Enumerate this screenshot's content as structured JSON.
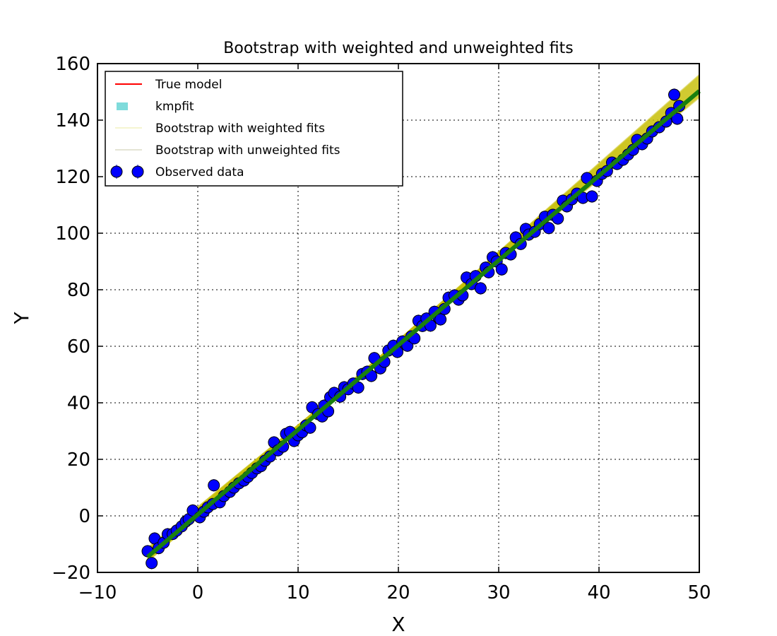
{
  "chart_data": {
    "type": "scatter",
    "title": "Bootstrap with weighted and unweighted fits",
    "xlabel": "X",
    "ylabel": "Y",
    "xlim": [
      -10,
      50
    ],
    "ylim": [
      -20,
      160
    ],
    "xticks": [
      "−10",
      "0",
      "10",
      "20",
      "30",
      "40",
      "50"
    ],
    "yticks": [
      "−20",
      "0",
      "20",
      "40",
      "60",
      "80",
      "100",
      "120",
      "140",
      "160"
    ],
    "grid": true,
    "legend_position": "upper-left",
    "legend": [
      {
        "label": "True model",
        "color": "#ff0000",
        "style": "line"
      },
      {
        "label": "kmpfit",
        "color": "#7fdbdb",
        "style": "patch"
      },
      {
        "label": "Bootstrap with weighted fits",
        "color": "#f5f5d0",
        "style": "line"
      },
      {
        "label": "Bootstrap with unweighted fits",
        "color": "#e4e4d4",
        "style": "line"
      },
      {
        "label": "Observed data",
        "color": "#0000ff",
        "style": "errorbar-marker"
      }
    ],
    "series": [
      {
        "name": "Observed data",
        "kind": "points",
        "color": "#0000ff",
        "points": [
          [
            -5.0,
            -12.5
          ],
          [
            -4.6,
            -16.7
          ],
          [
            -4.3,
            -8.0
          ],
          [
            -3.9,
            -11.4
          ],
          [
            -3.4,
            -9.5
          ],
          [
            -3.0,
            -6.5
          ],
          [
            -2.5,
            -6.4
          ],
          [
            -2.1,
            -5.2
          ],
          [
            -1.6,
            -3.7
          ],
          [
            -1.2,
            -2.0
          ],
          [
            -0.9,
            -1.2
          ],
          [
            -0.5,
            1.9
          ],
          [
            0.2,
            -0.5
          ],
          [
            0.6,
            1.5
          ],
          [
            1.0,
            3.0
          ],
          [
            1.5,
            4.2
          ],
          [
            1.6,
            10.8
          ],
          [
            2.2,
            4.8
          ],
          [
            2.6,
            7.0
          ],
          [
            3.2,
            8.5
          ],
          [
            3.6,
            10.0
          ],
          [
            4.1,
            11.5
          ],
          [
            4.6,
            12.5
          ],
          [
            5.0,
            13.8
          ],
          [
            5.4,
            15.2
          ],
          [
            5.9,
            16.8
          ],
          [
            6.3,
            17.6
          ],
          [
            6.7,
            19.5
          ],
          [
            7.2,
            21.0
          ],
          [
            7.6,
            26.0
          ],
          [
            8.0,
            23.2
          ],
          [
            8.5,
            24.5
          ],
          [
            8.8,
            29.0
          ],
          [
            9.2,
            29.7
          ],
          [
            9.6,
            26.5
          ],
          [
            10.0,
            28.5
          ],
          [
            10.4,
            29.6
          ],
          [
            10.8,
            32.0
          ],
          [
            11.2,
            31.2
          ],
          [
            11.4,
            38.4
          ],
          [
            12.0,
            36.0
          ],
          [
            12.4,
            35.2
          ],
          [
            12.6,
            39.0
          ],
          [
            13.0,
            37.0
          ],
          [
            13.2,
            42.0
          ],
          [
            13.6,
            43.5
          ],
          [
            14.2,
            42.2
          ],
          [
            14.6,
            45.5
          ],
          [
            15.0,
            44.8
          ],
          [
            15.5,
            46.8
          ],
          [
            16.0,
            45.4
          ],
          [
            16.4,
            50.2
          ],
          [
            16.9,
            51.0
          ],
          [
            17.3,
            49.5
          ],
          [
            17.6,
            55.8
          ],
          [
            18.2,
            52.2
          ],
          [
            18.6,
            54.5
          ],
          [
            19.0,
            58.5
          ],
          [
            19.5,
            60.2
          ],
          [
            19.9,
            58.0
          ],
          [
            20.4,
            61.7
          ],
          [
            20.9,
            60.2
          ],
          [
            21.3,
            63.5
          ],
          [
            21.6,
            62.8
          ],
          [
            22.0,
            69.0
          ],
          [
            22.4,
            67.2
          ],
          [
            22.8,
            69.8
          ],
          [
            23.2,
            67.3
          ],
          [
            23.6,
            72.2
          ],
          [
            24.0,
            70.2
          ],
          [
            24.2,
            69.5
          ],
          [
            24.6,
            73.2
          ],
          [
            25.0,
            77.2
          ],
          [
            25.6,
            78.0
          ],
          [
            26.0,
            76.5
          ],
          [
            26.4,
            78.0
          ],
          [
            26.8,
            84.3
          ],
          [
            27.3,
            82.0
          ],
          [
            27.7,
            84.8
          ],
          [
            28.2,
            80.5
          ],
          [
            28.7,
            87.8
          ],
          [
            29.0,
            86.2
          ],
          [
            29.4,
            91.5
          ],
          [
            29.8,
            90.0
          ],
          [
            30.3,
            87.2
          ],
          [
            30.7,
            93.0
          ],
          [
            31.2,
            92.5
          ],
          [
            31.7,
            98.5
          ],
          [
            32.2,
            96.2
          ],
          [
            32.7,
            101.5
          ],
          [
            33.0,
            99.5
          ],
          [
            33.6,
            100.5
          ],
          [
            34.1,
            103.2
          ],
          [
            34.6,
            105.8
          ],
          [
            35.0,
            101.8
          ],
          [
            35.4,
            106.5
          ],
          [
            35.9,
            105.2
          ],
          [
            36.4,
            111.5
          ],
          [
            36.8,
            109.5
          ],
          [
            37.3,
            112.0
          ],
          [
            37.8,
            114.0
          ],
          [
            38.4,
            112.5
          ],
          [
            38.8,
            119.5
          ],
          [
            39.3,
            113.0
          ],
          [
            39.8,
            118.5
          ],
          [
            40.3,
            121.0
          ],
          [
            40.8,
            122.0
          ],
          [
            41.3,
            125.0
          ],
          [
            41.8,
            124.5
          ],
          [
            42.4,
            126.0
          ],
          [
            42.9,
            127.8
          ],
          [
            43.4,
            129.5
          ],
          [
            43.8,
            133.0
          ],
          [
            44.3,
            131.5
          ],
          [
            44.8,
            133.5
          ],
          [
            45.3,
            136.0
          ],
          [
            46.0,
            137.5
          ],
          [
            46.7,
            139.5
          ],
          [
            47.2,
            142.5
          ],
          [
            47.5,
            149.0
          ],
          [
            47.8,
            140.5
          ],
          [
            48.0,
            145.0
          ]
        ]
      },
      {
        "name": "Bootstrap with weighted fits",
        "kind": "band",
        "color": "#c8bf0a",
        "x": [
          -5,
          50
        ],
        "y_center": [
          -13.8,
          152.0
        ],
        "y_spread": [
          2.4,
          4.0
        ]
      },
      {
        "name": "kmpfit",
        "kind": "line",
        "color": "#1a7f0e",
        "x": [
          -5,
          50
        ],
        "y": [
          -14.5,
          150.3
        ]
      }
    ]
  }
}
